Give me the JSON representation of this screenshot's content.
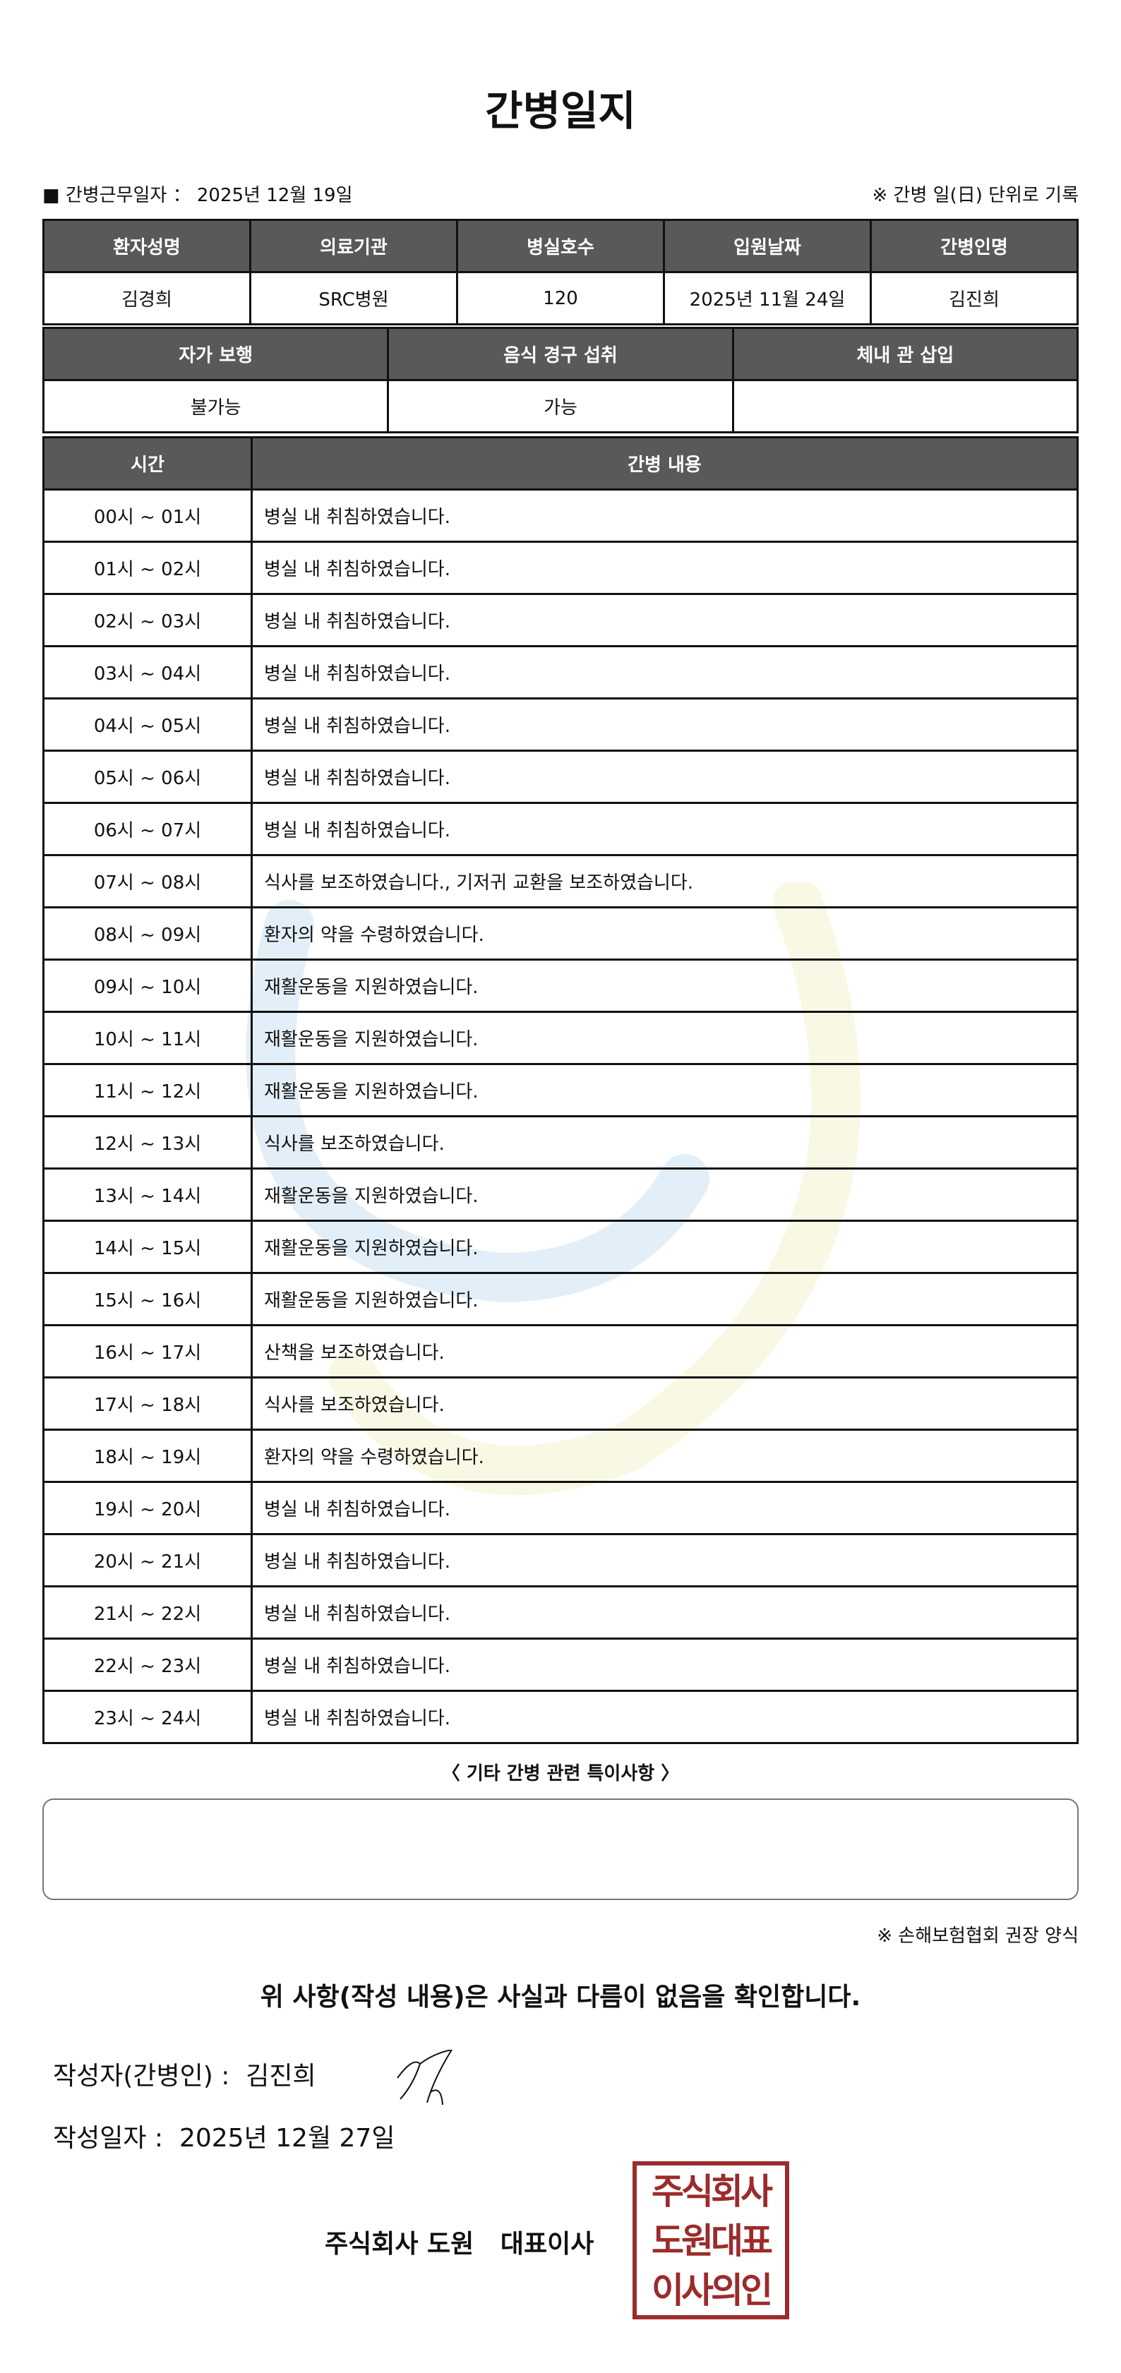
{
  "title": "간병일지",
  "work_date_label": "■ 간병근무일자 ：",
  "work_date": "2025년 12월 19일",
  "note_daily": "※ 간병 일(日) 단위로 기록",
  "patient_table": {
    "headers": [
      "환자성명",
      "의료기관",
      "병실호수",
      "입원날짜",
      "간병인명"
    ],
    "values": [
      "김경희",
      "SRC병원",
      "120",
      "2025년 11월 24일",
      "김진희"
    ]
  },
  "status_table": {
    "headers": [
      "자가 보행",
      "음식 경구 섭취",
      "체내 관 삽입"
    ],
    "values": [
      "불가능",
      "가능",
      ""
    ]
  },
  "log_table": {
    "headers": [
      "시간",
      "간병 내용"
    ],
    "rows": [
      [
        "00시 ~ 01시",
        "병실 내 취침하였습니다."
      ],
      [
        "01시 ~ 02시",
        "병실 내 취침하였습니다."
      ],
      [
        "02시 ~ 03시",
        "병실 내 취침하였습니다."
      ],
      [
        "03시 ~ 04시",
        "병실 내 취침하였습니다."
      ],
      [
        "04시 ~ 05시",
        "병실 내 취침하였습니다."
      ],
      [
        "05시 ~ 06시",
        "병실 내 취침하였습니다."
      ],
      [
        "06시 ~ 07시",
        "병실 내 취침하였습니다."
      ],
      [
        "07시 ~ 08시",
        "식사를 보조하였습니다., 기저귀 교환을 보조하였습니다."
      ],
      [
        "08시 ~ 09시",
        "환자의 약을 수령하였습니다."
      ],
      [
        "09시 ~ 10시",
        "재활운동을 지원하였습니다."
      ],
      [
        "10시 ~ 11시",
        "재활운동을 지원하였습니다."
      ],
      [
        "11시 ~ 12시",
        "재활운동을 지원하였습니다."
      ],
      [
        "12시 ~ 13시",
        "식사를 보조하였습니다."
      ],
      [
        "13시 ~ 14시",
        "재활운동을 지원하였습니다."
      ],
      [
        "14시 ~ 15시",
        "재활운동을 지원하였습니다."
      ],
      [
        "15시 ~ 16시",
        "재활운동을 지원하였습니다."
      ],
      [
        "16시 ~ 17시",
        "산책을 보조하였습니다."
      ],
      [
        "17시 ~ 18시",
        "식사를 보조하였습니다."
      ],
      [
        "18시 ~ 19시",
        "환자의 약을 수령하였습니다."
      ],
      [
        "19시 ~ 20시",
        "병실 내 취침하였습니다."
      ],
      [
        "20시 ~ 21시",
        "병실 내 취침하였습니다."
      ],
      [
        "21시 ~ 22시",
        "병실 내 취침하였습니다."
      ],
      [
        "22시 ~ 23시",
        "병실 내 취침하였습니다."
      ],
      [
        "23시 ~ 24시",
        "병실 내 취침하였습니다."
      ]
    ]
  },
  "special_label": "〈 기타 간병 관련 특이사항 〉",
  "special_text": "",
  "note_form": "※ 손해보험협회 권장 양식",
  "confirm": "위 사항(작성 내용)은 사실과 다름이 없음을 확인합니다.",
  "writer_label": "작성자(간병인) :",
  "writer_name": "김진희",
  "write_date_label": "작성일자 :",
  "write_date": "2025년 12월 27일",
  "company": "주식회사 도원   대표이사",
  "seal_text": [
    "주식회사",
    "도원대표",
    "이사의인"
  ],
  "colors": {
    "header_bg": "#595959",
    "seal": "#9c2b2b"
  }
}
